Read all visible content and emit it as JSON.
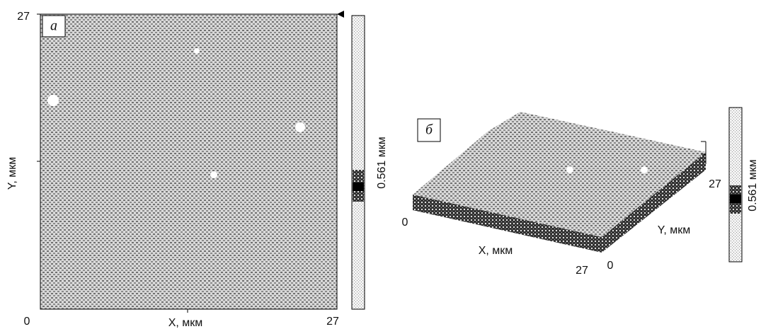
{
  "panel_a": {
    "label": "а",
    "x_axis_label": "X, мкм",
    "y_axis_label": "Y, мкм",
    "x_start": "0",
    "x_end": "27",
    "y_end": "27",
    "scale_label": "0.561 мкм"
  },
  "panel_b": {
    "label": "б",
    "x_axis_label": "X, мкм",
    "y_axis_label": "Y, мкм",
    "x_start": "0",
    "x_end": "27",
    "y_start": "0",
    "y_end": "27",
    "scale_label": "0.561 мкм"
  }
}
